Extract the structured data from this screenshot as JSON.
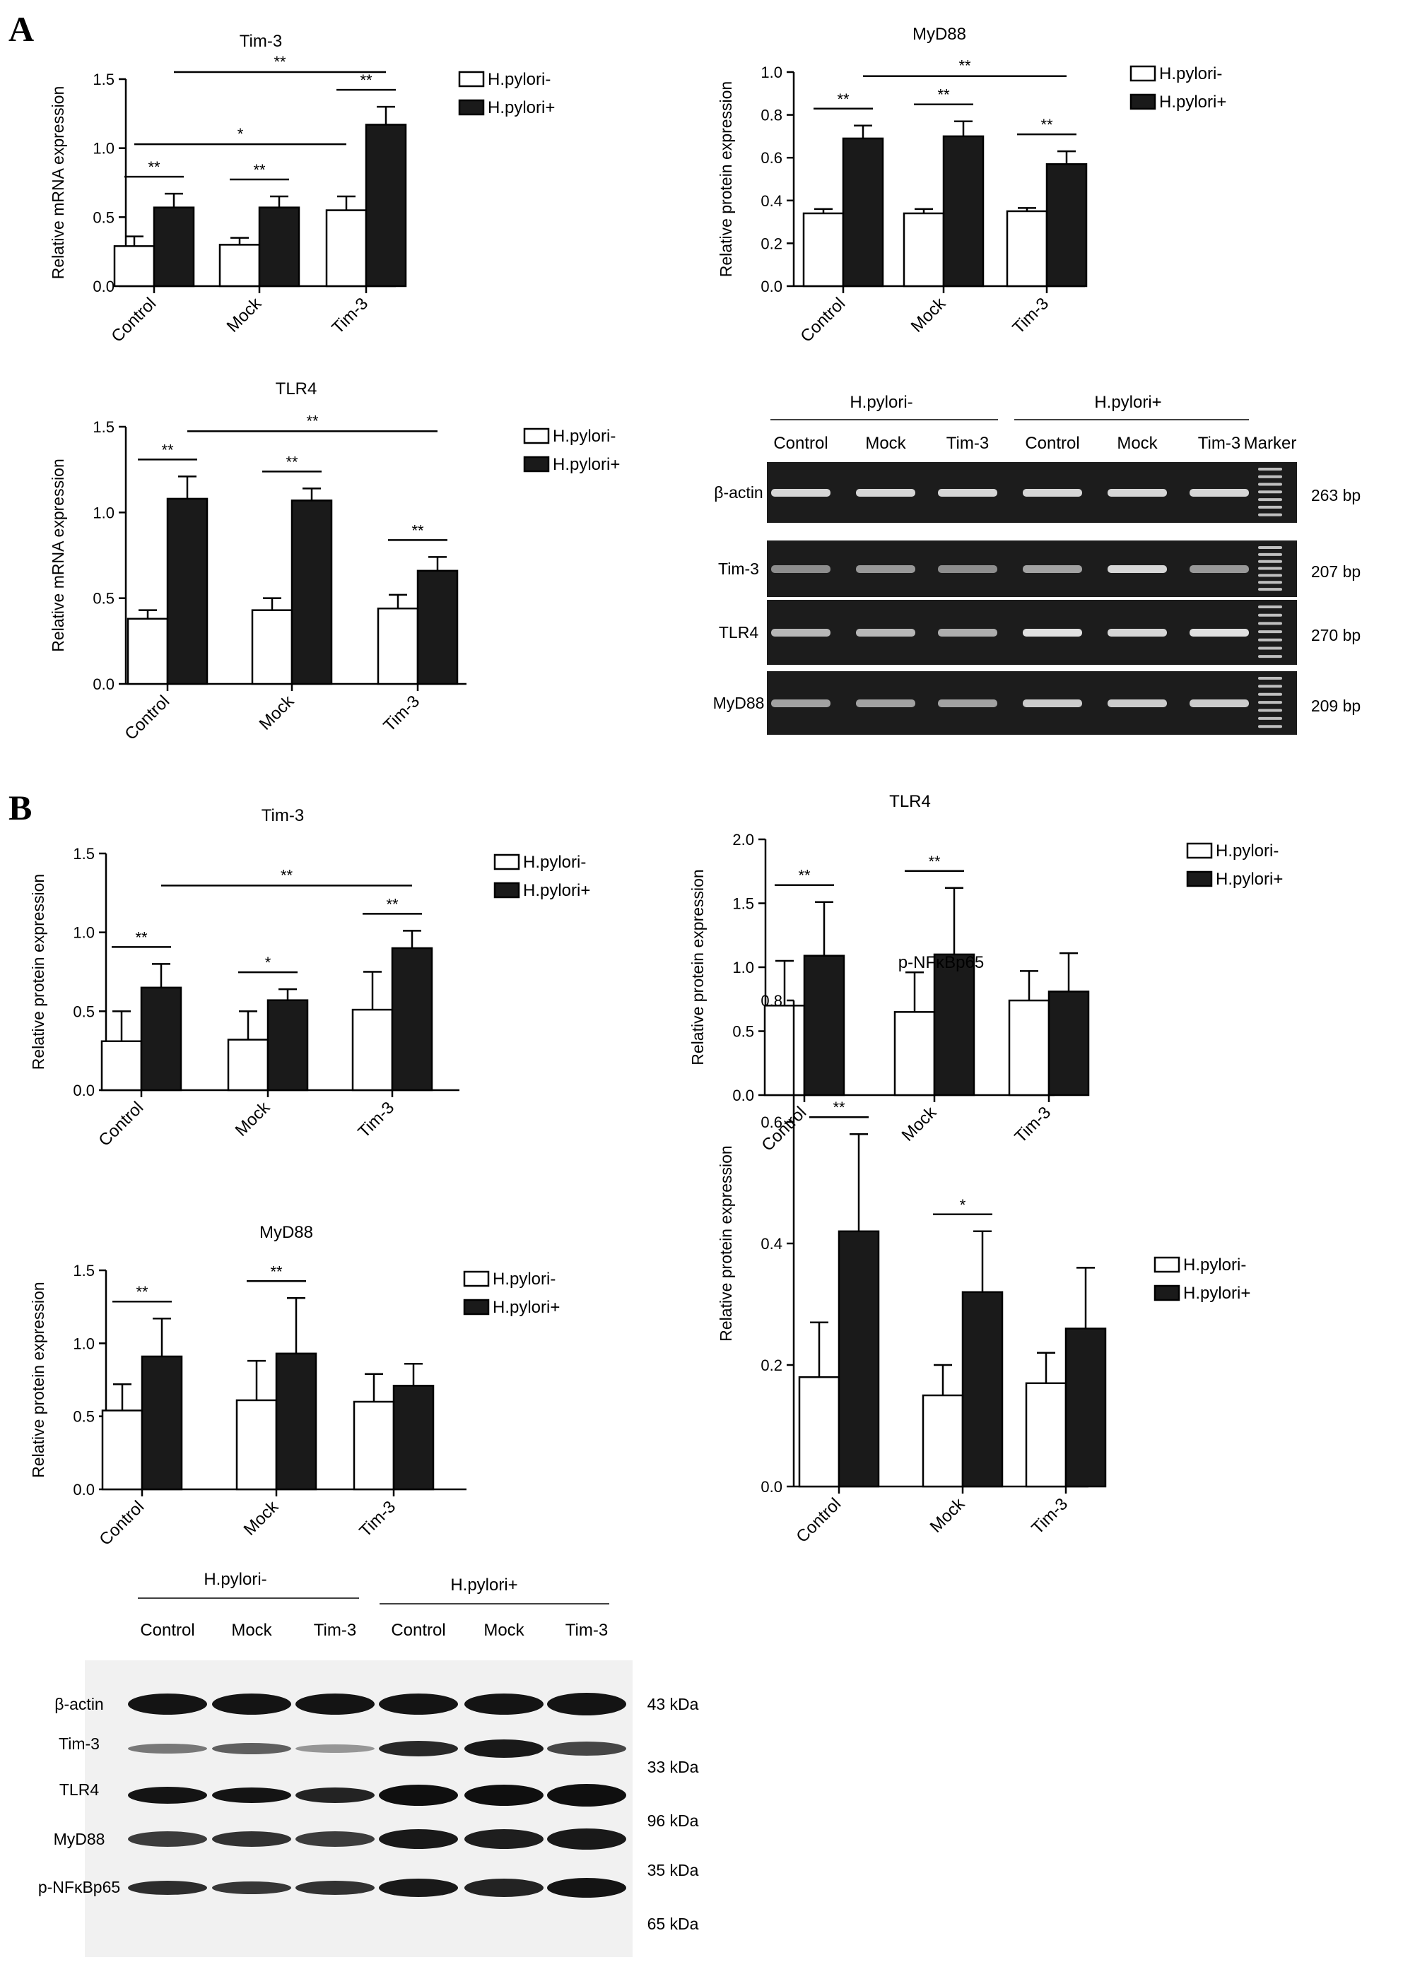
{
  "panels": [
    {
      "letter": "A"
    },
    {
      "letter": "B"
    }
  ],
  "legend": {
    "neg": "H.pylori-",
    "pos": "H.pylori+"
  },
  "chart_data": [
    {
      "type": "bar",
      "title": "Tim-3",
      "ylabel": "Relative mRNA expression",
      "categories": [
        "Control",
        "Mock",
        "Tim-3"
      ],
      "ylim": [
        0,
        1.5
      ],
      "yticks": [
        "0.0",
        "0.5",
        "1.0",
        "1.5"
      ],
      "series": [
        {
          "name": "H.pylori-",
          "values": [
            0.29,
            0.3,
            0.55
          ],
          "errors": [
            0.07,
            0.05,
            0.1
          ]
        },
        {
          "name": "H.pylori+",
          "values": [
            0.57,
            0.57,
            1.17
          ],
          "errors": [
            0.1,
            0.08,
            0.13
          ]
        }
      ],
      "annotations": [
        {
          "label": "**",
          "type": "within",
          "category": "Control"
        },
        {
          "label": "**",
          "type": "within",
          "category": "Mock"
        },
        {
          "label": "**",
          "type": "within",
          "category": "Tim-3"
        },
        {
          "label": "*",
          "type": "between",
          "from": "Control",
          "to": "Tim-3",
          "series": "H.pylori-"
        },
        {
          "label": "**",
          "type": "between",
          "from": "Control",
          "to": "Tim-3",
          "series": "H.pylori+"
        }
      ]
    },
    {
      "type": "bar",
      "title": "MyD88",
      "ylabel": "Relative protein expression",
      "categories": [
        "Control",
        "Mock",
        "Tim-3"
      ],
      "ylim": [
        0,
        1.0
      ],
      "yticks": [
        "0.0",
        "0.2",
        "0.4",
        "0.6",
        "0.8",
        "1.0"
      ],
      "series": [
        {
          "name": "H.pylori-",
          "values": [
            0.34,
            0.34,
            0.35
          ],
          "errors": [
            0.02,
            0.02,
            0.015
          ]
        },
        {
          "name": "H.pylori+",
          "values": [
            0.69,
            0.7,
            0.57
          ],
          "errors": [
            0.06,
            0.07,
            0.06
          ]
        }
      ],
      "annotations": [
        {
          "label": "**",
          "type": "within",
          "category": "Control"
        },
        {
          "label": "**",
          "type": "within",
          "category": "Mock"
        },
        {
          "label": "**",
          "type": "within",
          "category": "Tim-3"
        },
        {
          "label": "**",
          "type": "between",
          "from": "Control",
          "to": "Tim-3",
          "series": "H.pylori+"
        }
      ]
    },
    {
      "type": "bar",
      "title": "TLR4",
      "ylabel": "Relative mRNA expression",
      "categories": [
        "Control",
        "Mock",
        "Tim-3"
      ],
      "ylim": [
        0,
        1.5
      ],
      "yticks": [
        "0.0",
        "0.5",
        "1.0",
        "1.5"
      ],
      "series": [
        {
          "name": "H.pylori-",
          "values": [
            0.38,
            0.43,
            0.44
          ],
          "errors": [
            0.05,
            0.07,
            0.08
          ]
        },
        {
          "name": "H.pylori+",
          "values": [
            1.08,
            1.07,
            0.66
          ],
          "errors": [
            0.13,
            0.07,
            0.08
          ]
        }
      ],
      "annotations": [
        {
          "label": "**",
          "type": "within",
          "category": "Control"
        },
        {
          "label": "**",
          "type": "within",
          "category": "Mock"
        },
        {
          "label": "**",
          "type": "within",
          "category": "Tim-3"
        },
        {
          "label": "**",
          "type": "between",
          "from": "Control",
          "to": "Tim-3",
          "series": "H.pylori+"
        }
      ]
    },
    {
      "type": "bar",
      "title": "Tim-3",
      "ylabel": "Relative protein expression",
      "categories": [
        "Control",
        "Mock",
        "Tim-3"
      ],
      "ylim": [
        0,
        1.5
      ],
      "yticks": [
        "0.0",
        "0.5",
        "1.0",
        "1.5"
      ],
      "series": [
        {
          "name": "H.pylori-",
          "values": [
            0.31,
            0.32,
            0.51
          ],
          "errors": [
            0.19,
            0.18,
            0.24
          ]
        },
        {
          "name": "H.pylori+",
          "values": [
            0.65,
            0.57,
            0.9
          ],
          "errors": [
            0.15,
            0.07,
            0.11
          ]
        }
      ],
      "annotations": [
        {
          "label": "**",
          "type": "within",
          "category": "Control"
        },
        {
          "label": "*",
          "type": "within",
          "category": "Mock"
        },
        {
          "label": "**",
          "type": "within",
          "category": "Tim-3"
        },
        {
          "label": "**",
          "type": "between",
          "from": "Control",
          "to": "Tim-3",
          "series": "H.pylori+"
        }
      ]
    },
    {
      "type": "bar",
      "title": "TLR4",
      "ylabel": "Relative protein expression",
      "categories": [
        "Control",
        "Mock",
        "Tim-3"
      ],
      "ylim": [
        0,
        2.0
      ],
      "yticks": [
        "0.0",
        "0.5",
        "1.0",
        "1.5",
        "2.0"
      ],
      "series": [
        {
          "name": "H.pylori-",
          "values": [
            0.7,
            0.65,
            0.74
          ],
          "errors": [
            0.35,
            0.31,
            0.23
          ]
        },
        {
          "name": "H.pylori+",
          "values": [
            1.09,
            1.1,
            0.81
          ],
          "errors": [
            0.42,
            0.52,
            0.3
          ]
        }
      ],
      "annotations": [
        {
          "label": "**",
          "type": "within",
          "category": "Control"
        },
        {
          "label": "**",
          "type": "within",
          "category": "Mock"
        }
      ]
    },
    {
      "type": "bar",
      "title": "MyD88",
      "ylabel": "Relative protein expression",
      "categories": [
        "Control",
        "Mock",
        "Tim-3"
      ],
      "ylim": [
        0,
        1.5
      ],
      "yticks": [
        "0.0",
        "0.5",
        "1.0",
        "1.5"
      ],
      "series": [
        {
          "name": "H.pylori-",
          "values": [
            0.54,
            0.61,
            0.6
          ],
          "errors": [
            0.18,
            0.27,
            0.19
          ]
        },
        {
          "name": "H.pylori+",
          "values": [
            0.91,
            0.93,
            0.71
          ],
          "errors": [
            0.26,
            0.38,
            0.15
          ]
        }
      ],
      "annotations": [
        {
          "label": "**",
          "type": "within",
          "category": "Control"
        },
        {
          "label": "**",
          "type": "within",
          "category": "Mock"
        }
      ]
    },
    {
      "type": "bar",
      "title": "p-NFκBp65",
      "ylabel": "Relative protein expression",
      "categories": [
        "Control",
        "Mock",
        "Tim-3"
      ],
      "ylim": [
        0,
        0.8
      ],
      "yticks": [
        "0.0",
        "0.2",
        "0.4",
        "0.6",
        "0.8"
      ],
      "series": [
        {
          "name": "H.pylori-",
          "values": [
            0.18,
            0.15,
            0.17
          ],
          "errors": [
            0.09,
            0.05,
            0.05
          ]
        },
        {
          "name": "H.pylori+",
          "values": [
            0.42,
            0.32,
            0.26
          ],
          "errors": [
            0.16,
            0.1,
            0.1
          ]
        }
      ],
      "annotations": [
        {
          "label": "**",
          "type": "within",
          "category": "Control"
        },
        {
          "label": "*",
          "type": "within",
          "category": "Mock"
        }
      ]
    }
  ],
  "gel": {
    "group_labels": [
      "H.pylori-",
      "H.pylori+"
    ],
    "lanes": [
      "Control",
      "Mock",
      "Tim-3",
      "Control",
      "Mock",
      "Tim-3"
    ],
    "marker_label": "Marker",
    "rows": [
      {
        "name": "β-actin",
        "size": "263 bp"
      },
      {
        "name": "Tim-3",
        "size": "207 bp"
      },
      {
        "name": "TLR4",
        "size": "270 bp"
      },
      {
        "name": "MyD88",
        "size": "209 bp"
      }
    ]
  },
  "western": {
    "group_labels": [
      "H.pylori-",
      "H.pylori+"
    ],
    "lanes": [
      "Control",
      "Mock",
      "Tim-3",
      "Control",
      "Mock",
      "Tim-3"
    ],
    "rows": [
      {
        "name": "β-actin",
        "size": "43 kDa"
      },
      {
        "name": "Tim-3",
        "size": "33 kDa"
      },
      {
        "name": "TLR4",
        "size": "96 kDa"
      },
      {
        "name": "MyD88",
        "size": "35 kDa"
      },
      {
        "name": "p-NFκBp65",
        "size": "65 kDa"
      }
    ]
  }
}
